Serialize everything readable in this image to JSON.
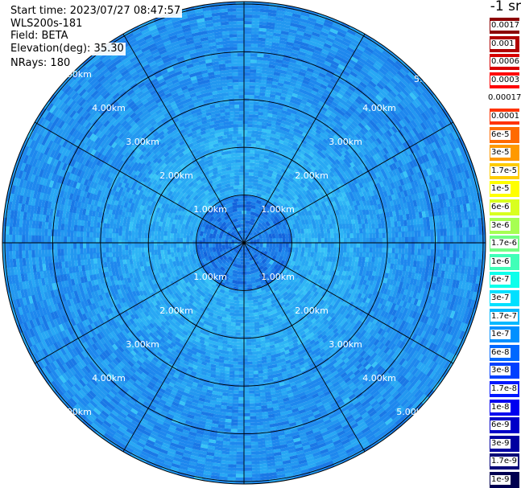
{
  "header": {
    "start_time": "Start time: 2023/07/27 08:47:57",
    "instrument": "WLS200s-181",
    "field": "Field: BETA",
    "elevation": "Elevation(deg): 35.30",
    "nrays": "NRays: 180"
  },
  "colorbar": {
    "unit_label": "-1 sr",
    "entries": [
      {
        "label": "0.0017",
        "color": "#8b0000"
      },
      {
        "label": "0.001",
        "color": "#b00000"
      },
      {
        "label": "0.0006",
        "color": "#d80000"
      },
      {
        "label": "0.0003",
        "color": "#ff0000"
      },
      {
        "label": "0.00017",
        "color": "#ffffff"
      },
      {
        "label": "0.0001",
        "color": "#ff3300"
      },
      {
        "label": "6e-5",
        "color": "#ff6a00"
      },
      {
        "label": "3e-5",
        "color": "#ff9900"
      },
      {
        "label": "1.7e-5",
        "color": "#ffcc00"
      },
      {
        "label": "1e-5",
        "color": "#ffff00"
      },
      {
        "label": "6e-6",
        "color": "#d9ff1f"
      },
      {
        "label": "3e-6",
        "color": "#a6ff52"
      },
      {
        "label": "1.7e-6",
        "color": "#73ff85"
      },
      {
        "label": "1e-6",
        "color": "#40ffb8"
      },
      {
        "label": "6e-7",
        "color": "#0dffeb"
      },
      {
        "label": "3e-7",
        "color": "#00e0ff"
      },
      {
        "label": "1.7e-7",
        "color": "#00b8ff"
      },
      {
        "label": "1e-7",
        "color": "#0090ff"
      },
      {
        "label": "6e-8",
        "color": "#0068ff"
      },
      {
        "label": "3e-8",
        "color": "#0040ff"
      },
      {
        "label": "1.7e-8",
        "color": "#0018ff"
      },
      {
        "label": "1e-8",
        "color": "#0000f0"
      },
      {
        "label": "6e-9",
        "color": "#0000c8"
      },
      {
        "label": "3e-9",
        "color": "#0000a0"
      },
      {
        "label": "1.7e-9",
        "color": "#000078"
      },
      {
        "label": "1e-9",
        "color": "#000050"
      }
    ]
  },
  "chart_data": {
    "type": "heatmap",
    "projection": "polar",
    "title": "",
    "range_rings_km": [
      1,
      2,
      3,
      4,
      5
    ],
    "range_labels": [
      "1.00km",
      "2.00km",
      "3.00km",
      "4.00km",
      "5.00km"
    ],
    "spokes_deg": [
      0,
      30,
      60,
      90,
      120,
      150,
      180,
      210,
      240,
      270,
      300,
      330
    ],
    "max_range_km": 6.3,
    "field": "BETA",
    "unit": "-1 sr",
    "typical_value_range": [
      3e-08,
      3e-07
    ],
    "colors": {
      "ring_line": "#000000",
      "center_low": "#1a78e6",
      "mid_high": "#2fb5f5",
      "outer_mix": "#1e88ee"
    }
  }
}
